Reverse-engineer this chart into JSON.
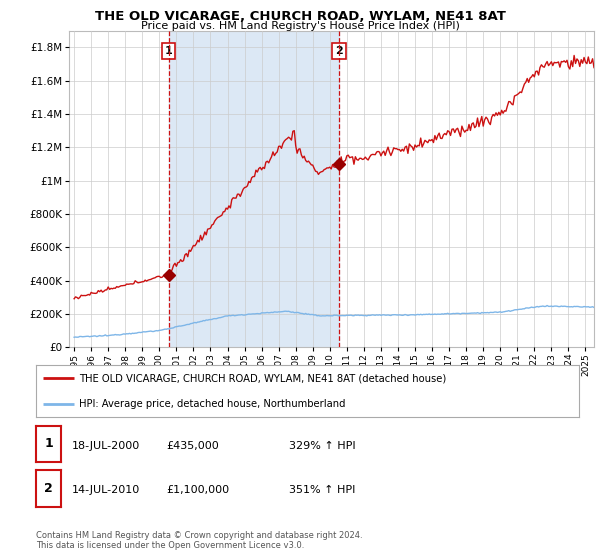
{
  "title": "THE OLD VICARAGE, CHURCH ROAD, WYLAM, NE41 8AT",
  "subtitle": "Price paid vs. HM Land Registry's House Price Index (HPI)",
  "legend_line1": "THE OLD VICARAGE, CHURCH ROAD, WYLAM, NE41 8AT (detached house)",
  "legend_line2": "HPI: Average price, detached house, Northumberland",
  "footnote": "Contains HM Land Registry data © Crown copyright and database right 2024.\nThis data is licensed under the Open Government Licence v3.0.",
  "sale1_label": "1",
  "sale1_date": "18-JUL-2000",
  "sale1_price": "£435,000",
  "sale1_hpi": "329% ↑ HPI",
  "sale2_label": "2",
  "sale2_date": "14-JUL-2010",
  "sale2_price": "£1,100,000",
  "sale2_hpi": "351% ↑ HPI",
  "hpi_color": "#7EB6E8",
  "price_color": "#CC1111",
  "marker_color": "#990000",
  "vline_color": "#CC1111",
  "shade_color": "#DCE8F5",
  "ylim": [
    0,
    1900000
  ],
  "yticks": [
    0,
    200000,
    400000,
    600000,
    800000,
    1000000,
    1200000,
    1400000,
    1600000,
    1800000
  ],
  "xlim_start": 1994.7,
  "xlim_end": 2025.5,
  "sale1_x": 2000.54,
  "sale1_y": 435000,
  "sale2_x": 2010.54,
  "sale2_y": 1100000,
  "background_color": "#ffffff",
  "grid_color": "#cccccc"
}
